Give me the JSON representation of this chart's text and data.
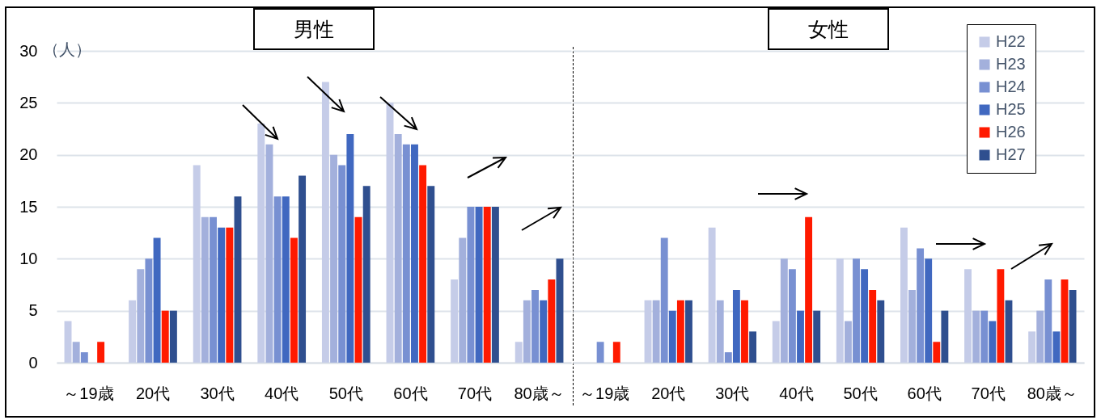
{
  "chart_data": [
    {
      "type": "bar",
      "title": "男性",
      "ylabel": "（人）",
      "categories": [
        "～19歳",
        "20代",
        "30代",
        "40代",
        "50代",
        "60代",
        "70代",
        "80歳～"
      ],
      "ylim": [
        0,
        30
      ],
      "yticks": [
        0,
        5,
        10,
        15,
        20,
        25,
        30
      ],
      "grid": "y",
      "series": [
        {
          "color": "#c5cce8",
          "values": [
            4,
            6,
            19,
            23,
            27,
            25,
            8,
            2
          ]
        },
        {
          "color": "#a3b0dc",
          "values": [
            2,
            9,
            14,
            21,
            20,
            22,
            12,
            6
          ]
        },
        {
          "color": "#7890d2",
          "values": [
            1,
            10,
            14,
            16,
            19,
            21,
            15,
            7
          ]
        },
        {
          "color": "#4068c0",
          "values": [
            0,
            12,
            13,
            16,
            22,
            21,
            15,
            6
          ]
        },
        {
          "color": "#ff1a00",
          "values": [
            2,
            5,
            13,
            12,
            14,
            19,
            15,
            8
          ]
        },
        {
          "color": "#2f4f8f",
          "values": [
            0,
            5,
            16,
            18,
            17,
            17,
            15,
            10
          ]
        }
      ]
    },
    {
      "type": "bar",
      "title": "女性",
      "categories": [
        "～19歳",
        "20代",
        "30代",
        "40代",
        "50代",
        "60代",
        "70代",
        "80歳～"
      ],
      "ylim": [
        0,
        30
      ],
      "yticks": [
        0,
        5,
        10,
        15,
        20,
        25,
        30
      ],
      "grid": "y",
      "tick_labels": "x",
      "legend": "top right",
      "series": [
        {
          "name": "H22",
          "color": "#c5cce8",
          "values": [
            0,
            6,
            13,
            4,
            10,
            13,
            9,
            3
          ]
        },
        {
          "name": "H23",
          "color": "#a3b0dc",
          "values": [
            0,
            6,
            6,
            10,
            4,
            7,
            5,
            5
          ]
        },
        {
          "name": "H24",
          "color": "#7890d2",
          "values": [
            2,
            12,
            1,
            9,
            10,
            11,
            5,
            8
          ]
        },
        {
          "name": "H25",
          "color": "#4068c0",
          "values": [
            0,
            5,
            7,
            5,
            9,
            10,
            4,
            3
          ]
        },
        {
          "name": "H26",
          "color": "#ff1a00",
          "values": [
            2,
            6,
            6,
            14,
            7,
            2,
            9,
            8
          ]
        },
        {
          "name": "H27",
          "color": "#2f4f8f",
          "values": [
            0,
            6,
            3,
            5,
            6,
            5,
            6,
            7
          ]
        }
      ]
    }
  ]
}
